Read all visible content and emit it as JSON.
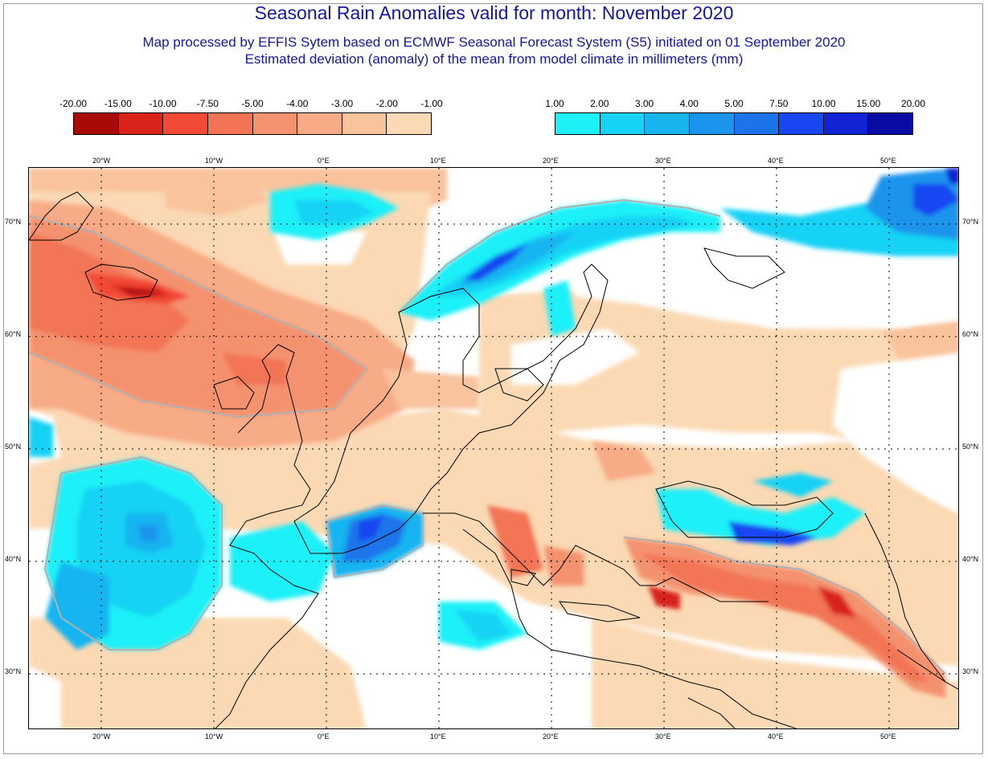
{
  "header": {
    "title": "Seasonal Rain Anomalies valid for month: November 2020",
    "subtitle1": "Map processed by EFFIS Sytem based on ECMWF Seasonal Forecast System (S5) initiated on 01 September 2020",
    "subtitle2": "Estimated deviation (anomaly) of the mean from model climate in millimeters (mm)"
  },
  "legend": {
    "negative": {
      "labels": [
        "-20.00",
        "-15.00",
        "-10.00",
        "-7.50",
        "-5.00",
        "-4.00",
        "-3.00",
        "-2.00",
        "-1.00"
      ],
      "colors": [
        "#a80a0a",
        "#d9231a",
        "#f24a34",
        "#f27454",
        "#f49270",
        "#f7ab86",
        "#f9c39d",
        "#fbd9b4"
      ]
    },
    "positive": {
      "labels": [
        "1.00",
        "2.00",
        "3.00",
        "4.00",
        "5.00",
        "7.50",
        "10.00",
        "15.00",
        "20.00"
      ],
      "colors": [
        "#1ef0f8",
        "#16d2f4",
        "#18b4f0",
        "#1a94ec",
        "#1c74ea",
        "#1846f0",
        "#1024d6",
        "#0a0aa4"
      ]
    }
  },
  "axes": {
    "longitudes": [
      "20°W",
      "10°W",
      "0°E",
      "10°E",
      "20°E",
      "30°E",
      "40°E",
      "50°E"
    ],
    "latitudes": [
      "70°N",
      "60°N",
      "50°N",
      "40°N",
      "30°N"
    ]
  },
  "colors": {
    "title": "#1515a8",
    "grid": "#000000",
    "coast": "#000000",
    "contour": "#b0b0b0"
  }
}
